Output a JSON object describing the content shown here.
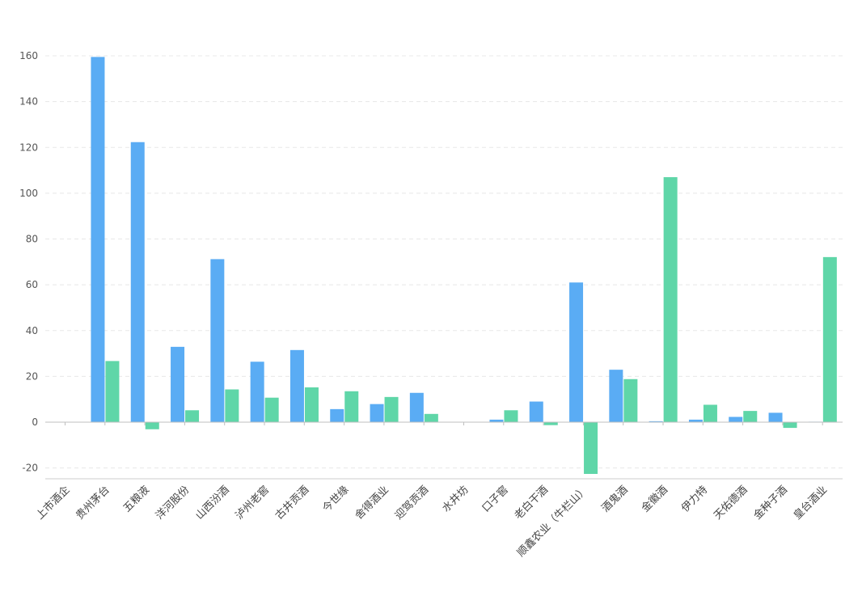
{
  "chart_data": {
    "type": "bar",
    "title": "",
    "xlabel": "",
    "ylabel": "",
    "ylim": [
      -25,
      165
    ],
    "yticks": [
      -20,
      0,
      20,
      40,
      60,
      80,
      100,
      120,
      140,
      160
    ],
    "grid": true,
    "legend": "none",
    "colors": [
      "#5aacf4",
      "#5fd6a8"
    ],
    "categories": [
      "上市酒企",
      "贵州茅台",
      "五粮液",
      "洋河股份",
      "山西汾酒",
      "泸州老窖",
      "古井贡酒",
      "今世缘",
      "舍得酒业",
      "迎驾贡酒",
      "水井坊",
      "口子窖",
      "老白干酒",
      "顺鑫农业（牛栏山）",
      "酒鬼酒",
      "金徽酒",
      "伊力特",
      "天佑德酒",
      "金种子酒",
      "皇台酒业"
    ],
    "series": [
      {
        "values": [
          0,
          159.5,
          122.3,
          32.9,
          71.2,
          26.4,
          31.5,
          5.7,
          7.9,
          12.8,
          0,
          1.1,
          9.0,
          61.0,
          22.9,
          0.4,
          1.1,
          2.3,
          4.1,
          0.2
        ]
      },
      {
        "values": [
          0,
          26.7,
          -3.1,
          5.2,
          14.3,
          10.7,
          15.2,
          13.5,
          11.0,
          3.6,
          0,
          5.2,
          -1.3,
          -22.6,
          18.8,
          107.0,
          7.6,
          4.9,
          -2.5,
          72.1
        ]
      }
    ]
  }
}
